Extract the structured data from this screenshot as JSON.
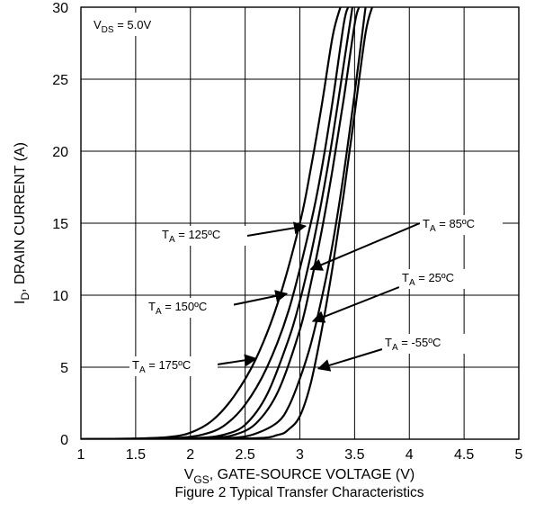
{
  "chart_data": {
    "type": "line",
    "caption": "Figure 2 Typical Transfer Characteristics",
    "xlabel": {
      "main": "V",
      "sub": "GS",
      "rest": ", GATE-SOURCE VOLTAGE (V)"
    },
    "ylabel": {
      "main": "I",
      "sub": "D",
      "rest": ", DRAIN CURRENT (A)"
    },
    "condition": {
      "main": "V",
      "sub": "DS",
      "rest": " = 5.0V"
    },
    "xlim": [
      1,
      5
    ],
    "ylim": [
      0,
      30
    ],
    "xticks": [
      "1",
      "1.5",
      "2",
      "2.5",
      "3",
      "3.5",
      "4",
      "4.5",
      "5"
    ],
    "yticks": [
      "0",
      "5",
      "10",
      "15",
      "20",
      "25",
      "30"
    ],
    "grid": true,
    "series": [
      {
        "name": "T_A = 175°C",
        "label_main": "T",
        "label_sub": "A",
        "label_rest": " = 175ºC",
        "x": [
          1.0,
          1.5,
          1.8,
          2.0,
          2.2,
          2.4,
          2.6,
          2.8,
          3.0,
          3.1,
          3.2,
          3.3,
          3.37
        ],
        "y": [
          0,
          0.05,
          0.15,
          0.45,
          1.3,
          3.0,
          5.6,
          9.5,
          15.0,
          18.8,
          23.2,
          28.0,
          30.0
        ]
      },
      {
        "name": "T_A = 150°C",
        "label_main": "T",
        "label_sub": "A",
        "label_rest": " = 150ºC",
        "x": [
          1.0,
          1.6,
          1.9,
          2.1,
          2.3,
          2.5,
          2.7,
          2.9,
          3.1,
          3.2,
          3.3,
          3.4,
          3.44
        ],
        "y": [
          0,
          0.03,
          0.1,
          0.3,
          0.9,
          2.4,
          5.0,
          9.0,
          15.0,
          18.8,
          23.5,
          28.8,
          30.0
        ]
      },
      {
        "name": "T_A = 125°C",
        "label_main": "T",
        "label_sub": "A",
        "label_rest": " = 125ºC",
        "x": [
          1.0,
          1.8,
          2.1,
          2.3,
          2.5,
          2.7,
          2.9,
          3.0,
          3.1,
          3.2,
          3.3,
          3.4,
          3.48
        ],
        "y": [
          0,
          0.02,
          0.1,
          0.3,
          1.0,
          3.1,
          7.0,
          9.6,
          12.8,
          16.6,
          21.0,
          26.0,
          30.0
        ]
      },
      {
        "name": "T_A = 85°C",
        "label_main": "T",
        "label_sub": "A",
        "label_rest": " = 85ºC",
        "x": [
          1.0,
          1.9,
          2.2,
          2.4,
          2.6,
          2.8,
          3.0,
          3.1,
          3.2,
          3.3,
          3.4,
          3.5,
          3.54
        ],
        "y": [
          0,
          0.02,
          0.1,
          0.3,
          1.1,
          3.3,
          7.6,
          10.8,
          14.5,
          18.8,
          23.6,
          28.8,
          30.0
        ]
      },
      {
        "name": "T_A = 25°C",
        "label_main": "T",
        "label_sub": "A",
        "label_rest": " = 25ºC",
        "x": [
          1.0,
          2.0,
          2.4,
          2.6,
          2.8,
          2.9,
          3.0,
          3.1,
          3.2,
          3.3,
          3.4,
          3.5,
          3.6
        ],
        "y": [
          0,
          0.02,
          0.1,
          0.4,
          1.2,
          2.3,
          4.2,
          6.6,
          9.8,
          13.6,
          18.4,
          24.0,
          30.0
        ]
      },
      {
        "name": "T_A = -55°C",
        "label_main": "T",
        "label_sub": "A",
        "label_rest": " = -55ºC",
        "x": [
          1.0,
          2.5,
          2.8,
          2.9,
          3.0,
          3.1,
          3.2,
          3.3,
          3.4,
          3.5,
          3.6,
          3.66
        ],
        "y": [
          0,
          0.05,
          0.3,
          0.7,
          1.6,
          3.9,
          7.6,
          12.0,
          17.0,
          22.6,
          28.2,
          30.0
        ]
      }
    ],
    "annotations": [
      {
        "series": "T_A = 125°C",
        "arrow_to": [
          3.05,
          14.8
        ]
      },
      {
        "series": "T_A = 85°C",
        "arrow_to": [
          3.1,
          11.8
        ]
      },
      {
        "series": "T_A = 150°C",
        "arrow_to": [
          2.88,
          10.1
        ]
      },
      {
        "series": "T_A = 25°C",
        "arrow_to": [
          3.12,
          8.2
        ]
      },
      {
        "series": "T_A = 175°C",
        "arrow_to": [
          2.6,
          5.6
        ]
      },
      {
        "series": "T_A = -55°C",
        "arrow_to": [
          3.17,
          4.9
        ]
      }
    ]
  }
}
